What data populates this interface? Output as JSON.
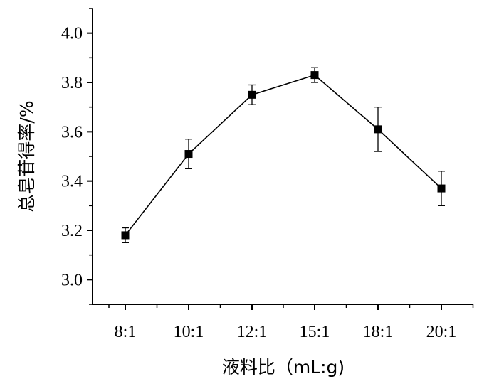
{
  "chart_data": {
    "type": "line",
    "categories": [
      "8:1",
      "10:1",
      "12:1",
      "15:1",
      "18:1",
      "20:1"
    ],
    "series": [
      {
        "values": [
          3.18,
          3.51,
          3.75,
          3.83,
          3.61,
          3.37
        ],
        "error": [
          0.03,
          0.06,
          0.04,
          0.03,
          0.09,
          0.07
        ]
      }
    ],
    "xlabel": "液料比（mL:g)",
    "ylabel": "总皂苷得率/%",
    "ylim": [
      2.9,
      4.1
    ],
    "yticks": [
      3.0,
      3.2,
      3.4,
      3.6,
      3.8,
      4.0
    ],
    "ytick_labels": [
      "3.0",
      "3.2",
      "3.4",
      "3.6",
      "3.8",
      "4.0"
    ],
    "grid": false,
    "marker": "square",
    "color": "#000000"
  }
}
